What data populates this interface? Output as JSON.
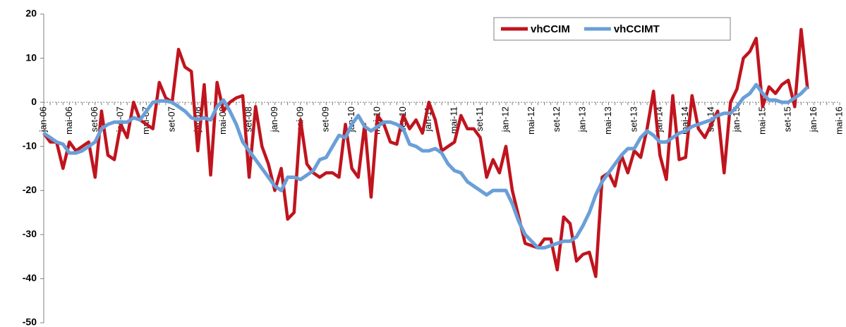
{
  "chart_data": {
    "type": "line",
    "categories": [
      "jan-06",
      null,
      null,
      null,
      "mai-06",
      null,
      null,
      null,
      "set-06",
      null,
      null,
      null,
      "jan-07",
      null,
      null,
      null,
      "mai-07",
      null,
      null,
      null,
      "set-07",
      null,
      null,
      null,
      "jan-08",
      null,
      null,
      null,
      "mai-08",
      null,
      null,
      null,
      "set-08",
      null,
      null,
      null,
      "jan-09",
      null,
      null,
      null,
      "mai-09",
      null,
      null,
      null,
      "set-09",
      null,
      null,
      null,
      "jan-10",
      null,
      null,
      null,
      "mai-10",
      null,
      null,
      null,
      "set-10",
      null,
      null,
      null,
      "jan-11",
      null,
      null,
      null,
      "mai-11",
      null,
      null,
      null,
      "set-11",
      null,
      null,
      null,
      "jan-12",
      null,
      null,
      null,
      "mai-12",
      null,
      null,
      null,
      "set-12",
      null,
      null,
      null,
      "jan-13",
      null,
      null,
      null,
      "mai-13",
      null,
      null,
      null,
      "set-13",
      null,
      null,
      null,
      "jan-14",
      null,
      null,
      null,
      "mai-14",
      null,
      null,
      null,
      "set-14",
      null,
      null,
      null,
      "jan-15",
      null,
      null,
      null,
      "mai-15",
      null,
      null,
      null,
      "set-15",
      null,
      null,
      null,
      "jan-16",
      null,
      null,
      null,
      "mai-16"
    ],
    "series": [
      {
        "name": "vhCCIM",
        "color": "#c0141e",
        "values": [
          -7,
          -9,
          -9,
          -15,
          -9,
          -11,
          -10,
          -9,
          -17,
          -2,
          -12,
          -13,
          -5,
          -8,
          0,
          -4,
          -5,
          -6,
          4.5,
          1,
          0,
          12,
          8,
          7,
          -11,
          4,
          -16.5,
          4.5,
          -2,
          0,
          1,
          1.5,
          -17,
          -1,
          -10,
          -14,
          -20,
          -15,
          -26.5,
          -25,
          -4,
          -14,
          -16,
          -17,
          -16,
          -16,
          -17,
          -5,
          -15,
          -17,
          -5,
          -21.5,
          -3,
          -5,
          -9,
          -9.5,
          -3,
          -6,
          -4,
          -7,
          0,
          -4,
          -11,
          -10,
          -9,
          -3,
          -6,
          -6,
          -8,
          -17,
          -13,
          -16,
          -10,
          -20,
          -26,
          -32,
          -32.5,
          -33,
          -31,
          -31,
          -38,
          -26,
          -27.5,
          -36,
          -34.5,
          -34,
          -39.5,
          -17,
          -16,
          -19,
          -12,
          -16,
          -11,
          -12.5,
          -6,
          2.5,
          -12,
          -17.5,
          1.5,
          -13,
          -12.5,
          1.5,
          -6,
          -8,
          -5,
          -2,
          -16,
          0,
          3,
          10,
          11.5,
          14.5,
          -1,
          3.5,
          2,
          4,
          5,
          -1,
          16.5,
          3,
          null,
          null,
          null,
          null,
          null
        ]
      },
      {
        "name": "vhCCIMT",
        "color": "#6a9fd8",
        "values": [
          -7,
          -8,
          -9,
          -9.5,
          -11.5,
          -11.5,
          -11,
          -10,
          -9,
          -6,
          -5,
          -4.5,
          -4.5,
          -4.5,
          -3.5,
          -4,
          -2,
          0,
          0.3,
          0.3,
          0,
          -1,
          -2,
          -3.5,
          -4,
          -3.5,
          -4,
          -1,
          0.5,
          -2,
          -5,
          -9,
          -11,
          -13,
          -15,
          -17,
          -19,
          -20,
          -17,
          -17,
          -17.5,
          -16.5,
          -15.5,
          -13,
          -12.5,
          -10,
          -7.5,
          -8,
          -5,
          -3,
          -5.5,
          -6.5,
          -5.5,
          -4.5,
          -4.5,
          -5,
          -6,
          -9.5,
          -10,
          -11,
          -11,
          -10.5,
          -11.5,
          -14,
          -15.5,
          -16,
          -18,
          -19,
          -20,
          -21,
          -20,
          -20,
          -20,
          -23,
          -27,
          -30,
          -31.5,
          -33,
          -33,
          -32.5,
          -32,
          -31.5,
          -31.5,
          -30.5,
          -28,
          -25,
          -21,
          -18,
          -16,
          -14,
          -12,
          -10.5,
          -10.5,
          -8,
          -6.5,
          -7.5,
          -9,
          -9,
          -8,
          -7,
          -6.5,
          -5.5,
          -5,
          -4.5,
          -4,
          -3,
          -2.5,
          -2.5,
          -1,
          1,
          2,
          4,
          2,
          0.5,
          0.5,
          0,
          0,
          1,
          2,
          3.5,
          null,
          null,
          null,
          null,
          null
        ]
      }
    ],
    "ylim": [
      -50,
      20
    ],
    "yticks": [
      -50,
      -40,
      -30,
      -20,
      -10,
      0,
      10,
      20
    ],
    "legend": "top-right"
  }
}
